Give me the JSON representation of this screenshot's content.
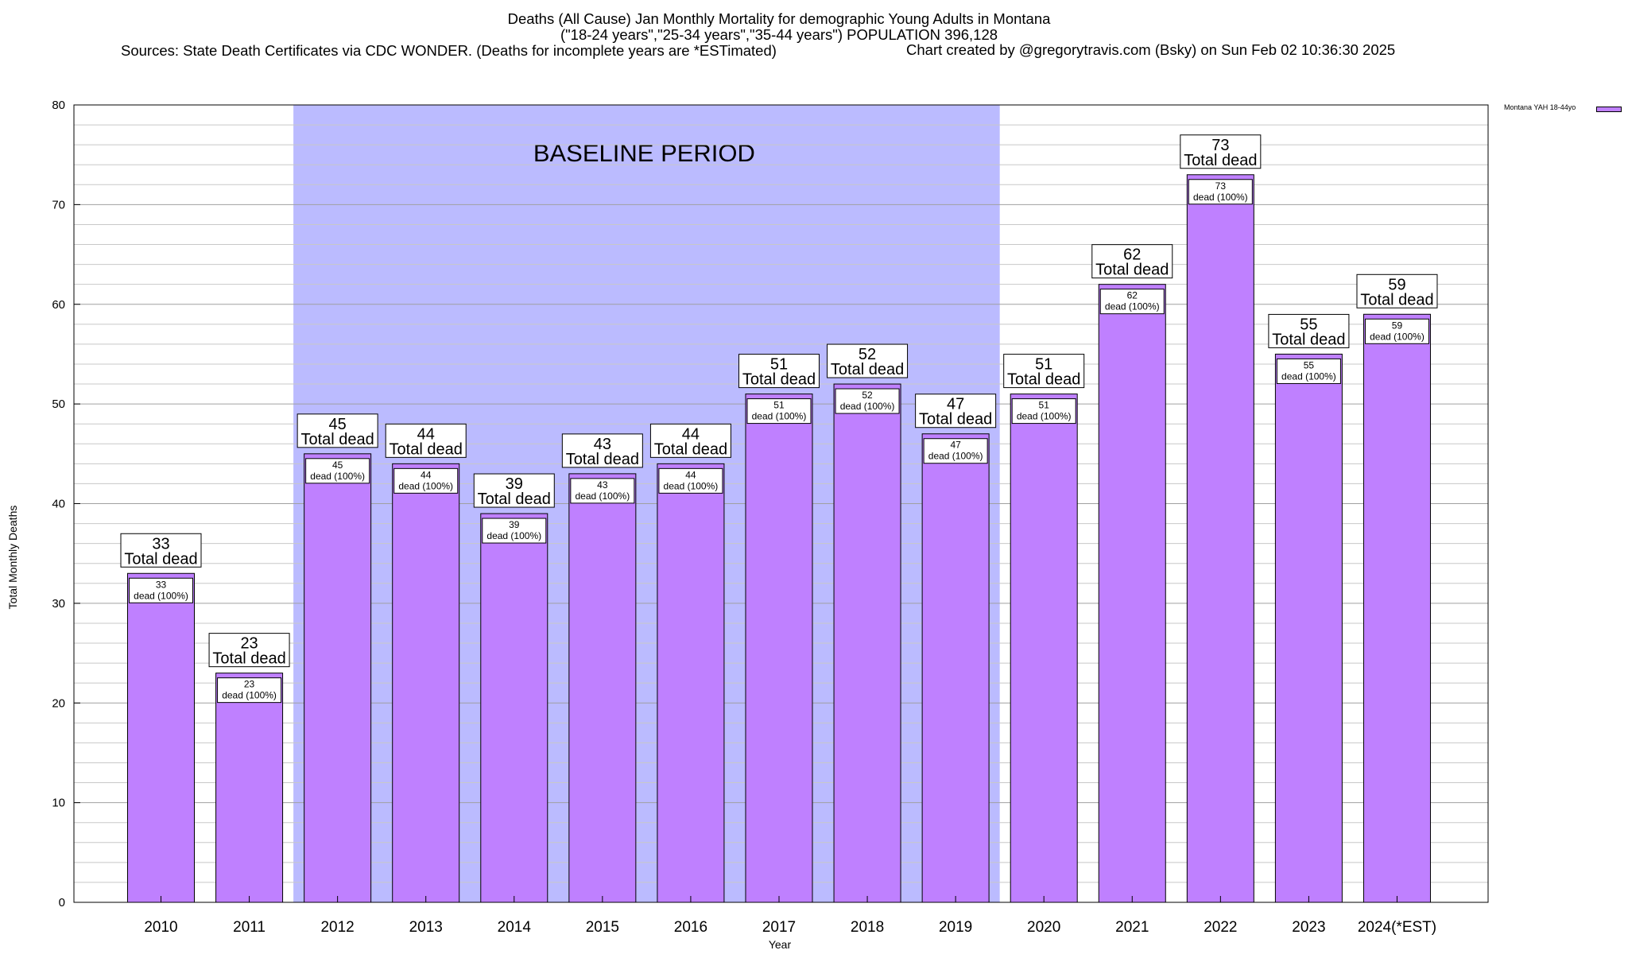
{
  "title_lines": [
    "Deaths (All Cause) Jan Monthly Mortality for demographic Young Adults in Montana",
    "(\"18-24 years\",\"25-34 years\",\"35-44 years\") POPULATION 396,128",
    "Sources: State Death Certificates via CDC WONDER. (Deaths for incomplete years are *ESTimated)"
  ],
  "credit": "Chart created by @gregorytravis.com (Bsky) on Sun Feb 02 10:36:30 2025",
  "colors": {
    "bar": "#bf80ff",
    "baseline": "#bbbbff",
    "grid": "#c8c8c8"
  },
  "chart_data": {
    "type": "bar",
    "categories": [
      "2010",
      "2011",
      "2012",
      "2013",
      "2014",
      "2015",
      "2016",
      "2017",
      "2018",
      "2019",
      "2020",
      "2021",
      "2022",
      "2023",
      "2024(*EST)"
    ],
    "series": [
      {
        "name": "Montana YAH 18-44yo",
        "values": [
          33,
          23,
          45,
          44,
          39,
          43,
          44,
          51,
          52,
          47,
          51,
          62,
          73,
          55,
          59
        ]
      }
    ],
    "total_label": "Total dead",
    "inner_label": "dead (100%)",
    "xlabel": "Year",
    "ylabel": "Total Monthly Deaths",
    "ylim": [
      0,
      80
    ],
    "yticks": [
      0,
      10,
      20,
      30,
      40,
      50,
      60,
      70,
      80
    ],
    "baseline_period": {
      "label": "BASELINE PERIOD",
      "from": "2012",
      "to": "2019"
    },
    "grid": true,
    "legend_position": "top-right"
  }
}
